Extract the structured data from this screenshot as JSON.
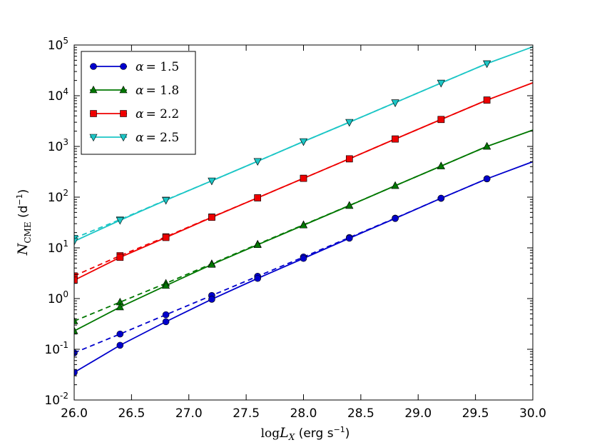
{
  "chart_data": {
    "type": "line",
    "title": "",
    "xlabel_math": "log",
    "xlabel_var": "L",
    "xlabel_sub": "X",
    "xlabel_units": " (erg s",
    "xlabel_units_sup": "−1",
    "xlabel_units_end": ")",
    "ylabel_var": "N",
    "ylabel_sub": "CME",
    "ylabel_units": " (d",
    "ylabel_units_sup": "−1",
    "ylabel_units_end": ")",
    "xlim": [
      26.0,
      30.0
    ],
    "ylim_log10": [
      -2,
      5
    ],
    "yscale": "log",
    "grid": false,
    "legend_position": "top-left",
    "x_ticks": [
      "26.0",
      "26.5",
      "27.0",
      "27.5",
      "28.0",
      "28.5",
      "29.0",
      "29.5",
      "30.0"
    ],
    "y_ticks": [
      {
        "base": "10",
        "exp": "-2"
      },
      {
        "base": "10",
        "exp": "-1"
      },
      {
        "base": "10",
        "exp": "0"
      },
      {
        "base": "10",
        "exp": "1"
      },
      {
        "base": "10",
        "exp": "2"
      },
      {
        "base": "10",
        "exp": "3"
      },
      {
        "base": "10",
        "exp": "4"
      },
      {
        "base": "10",
        "exp": "5"
      }
    ],
    "x": [
      26.0,
      26.4,
      26.8,
      27.2,
      27.6,
      28.0,
      28.4,
      28.8,
      29.2,
      29.6
    ],
    "series": [
      {
        "name": "α = 1.5",
        "legend_symbol": "α",
        "legend_value": "= 1.5",
        "color": "#0000cc",
        "marker": "circle",
        "solid": [
          0.035,
          0.12,
          0.35,
          0.97,
          2.5,
          6.2,
          15.5,
          38,
          95,
          230
        ],
        "dashed": [
          0.085,
          0.2,
          0.48,
          1.15,
          2.75,
          6.6,
          16,
          38.5,
          95,
          230
        ],
        "end_value": 500
      },
      {
        "name": "α = 1.8",
        "legend_symbol": "α",
        "legend_value": "= 1.8",
        "color": "#007700",
        "marker": "triangle-up",
        "solid": [
          0.23,
          0.68,
          1.8,
          4.7,
          11.5,
          28,
          68,
          168,
          410,
          1000
        ],
        "dashed": [
          0.36,
          0.85,
          2.0,
          4.85,
          11.8,
          28.5,
          68.5,
          168,
          410,
          1000
        ],
        "end_value": 2100
      },
      {
        "name": "α = 2.2",
        "legend_symbol": "α",
        "legend_value": "= 2.2",
        "color": "#ee0000",
        "marker": "square",
        "solid": [
          2.3,
          6.5,
          16,
          40,
          97,
          235,
          570,
          1400,
          3400,
          8200
        ],
        "dashed": [
          2.8,
          7.0,
          16.5,
          40.5,
          97,
          235,
          570,
          1400,
          3400,
          8200
        ],
        "end_value": 18000
      },
      {
        "name": "α = 2.5",
        "legend_symbol": "α",
        "legend_value": "= 2.5",
        "color": "#1cc6c6",
        "marker": "triangle-down",
        "solid": [
          13.5,
          35,
          87,
          210,
          510,
          1250,
          3000,
          7300,
          17800,
          43000
        ],
        "dashed": [
          15.5,
          36,
          88,
          210,
          510,
          1250,
          3000,
          7300,
          17800,
          43000
        ],
        "end_value": 92000
      }
    ]
  }
}
